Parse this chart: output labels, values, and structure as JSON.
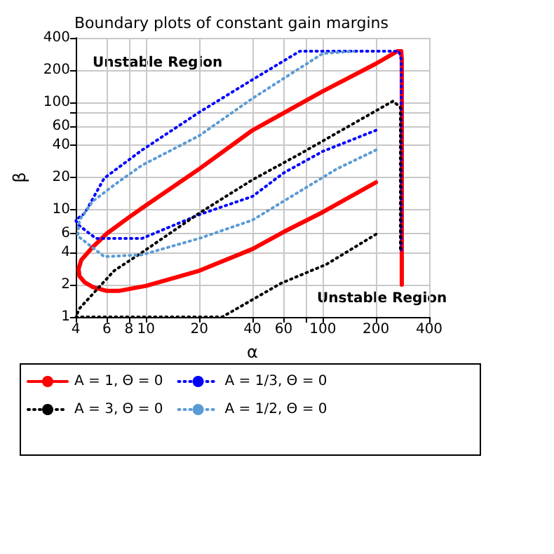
{
  "chart_data": {
    "type": "line",
    "title": "Boundary plots of constant gain margins",
    "xlabel": "α",
    "ylabel": "β",
    "log": "xy",
    "grid": true,
    "legend": "bottom",
    "marker": "none",
    "xlim": [
      4,
      400
    ],
    "xticks": [
      4,
      6,
      8,
      10,
      20,
      40,
      60,
      {
        "value": 80,
        "label": null
      },
      100,
      200,
      400
    ],
    "ylim": [
      1,
      400
    ],
    "yticks": [
      1,
      2,
      4,
      6,
      10,
      20,
      40,
      60,
      {
        "value": 80,
        "label": null
      },
      100,
      200,
      400
    ],
    "annotations": [
      "Unstable Region",
      "Unstable Region"
    ],
    "series": [
      {
        "name": "A = 1, Θ = 0",
        "color": "#ff0000",
        "line_style": "solid",
        "x": [
          200,
          100,
          60,
          40,
          20,
          10,
          7,
          6,
          5,
          4.5,
          4.2,
          4.15,
          4.3,
          5,
          6,
          8,
          10,
          20,
          40,
          100,
          200,
          264,
          278,
          280,
          280,
          280,
          280
        ],
        "values": [
          18,
          9.5,
          6.2,
          4.3,
          2.7,
          1.95,
          1.75,
          1.75,
          1.9,
          2.1,
          2.4,
          2.8,
          3.4,
          4.5,
          6,
          8.5,
          11,
          24,
          55,
          127,
          230,
          300,
          300,
          250,
          100,
          20,
          2
        ]
      },
      {
        "name": "A = 1/3, Θ = 0",
        "color": "#0000ff",
        "line_style": "dotted",
        "x": [
          200,
          100,
          60,
          40,
          20,
          9.5,
          5.2,
          4.1,
          4,
          4.5,
          5.8,
          9.5,
          20,
          40,
          74,
          100,
          200,
          270,
          278,
          278,
          278
        ],
        "values": [
          55,
          35,
          22,
          13.3,
          9,
          5.4,
          5.4,
          7.3,
          8,
          9.3,
          19.7,
          36,
          81,
          163,
          300,
          300,
          300,
          300,
          250,
          50,
          4
        ]
      },
      {
        "name": "A = 3, Θ = 0",
        "color": "#000000",
        "line_style": "dotted",
        "x": [
          200,
          105,
          58,
          27,
          10,
          4,
          4.2,
          6.6,
          9.5,
          20,
          40,
          74,
          250,
          275,
          275
        ],
        "values": [
          5.9,
          3.1,
          2.06,
          1,
          1,
          1,
          1.2,
          2.7,
          4,
          9.3,
          19,
          33,
          103,
          90,
          4
        ]
      },
      {
        "name": "A = 1/2, Θ = 0",
        "color": "#5b9bd5",
        "line_style": "dotted",
        "x": [
          200,
          120,
          40,
          20,
          9.5,
          5.8,
          4.1,
          4.2,
          5,
          6.6,
          9.5,
          20,
          40,
          100,
          150
        ],
        "values": [
          36,
          24,
          8,
          5.4,
          3.8,
          3.65,
          5.7,
          8,
          12,
          17,
          26,
          49,
          109,
          286,
          300
        ]
      }
    ]
  }
}
